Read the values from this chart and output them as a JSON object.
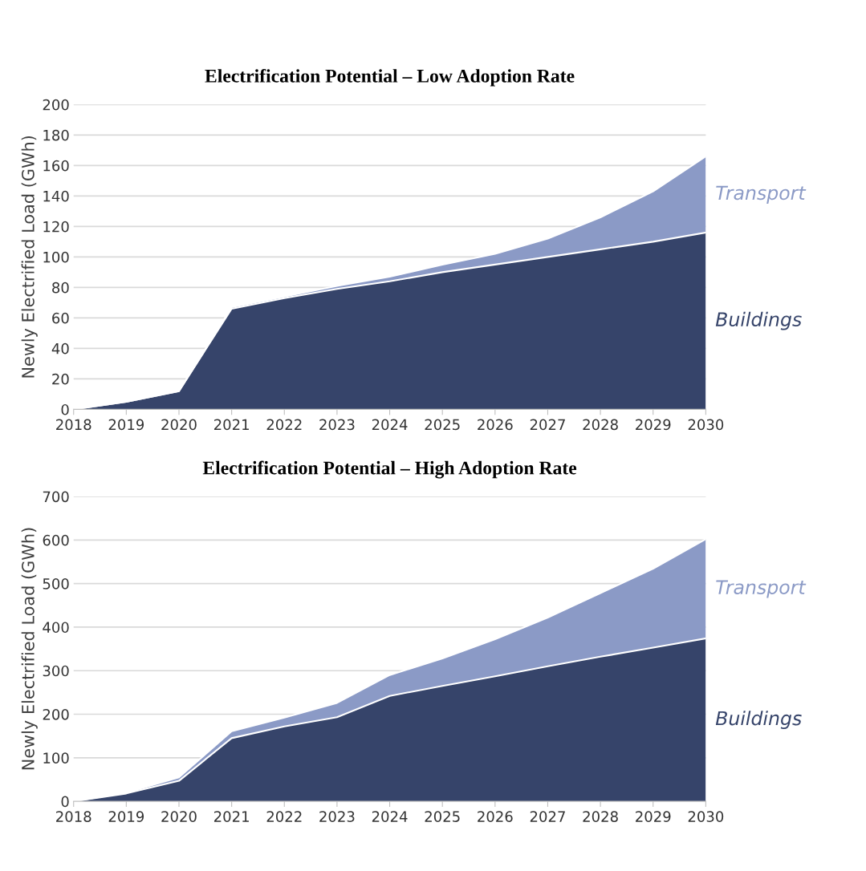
{
  "chart_data": [
    {
      "type": "area",
      "title": "Electrification Potential – Low Adoption Rate",
      "ylabel": "Newly Electrified Load (GWh)",
      "stacked": true,
      "grid": "y",
      "legend": false,
      "x": [
        2018,
        2019,
        2020,
        2021,
        2022,
        2023,
        2024,
        2025,
        2026,
        2027,
        2028,
        2029,
        2030
      ],
      "series": [
        {
          "name": "Buildings",
          "color": "#36446a",
          "values": [
            0,
            5,
            12,
            66,
            73,
            79,
            84,
            90,
            95,
            100,
            105,
            110,
            116
          ]
        },
        {
          "name": "Transport",
          "color": "#8b9ac6",
          "values": [
            0,
            0,
            0,
            1,
            1,
            2,
            3,
            5,
            7,
            12,
            21,
            33,
            50
          ]
        }
      ],
      "xlim": [
        2018,
        2030
      ],
      "xticks": [
        2018,
        2019,
        2020,
        2021,
        2022,
        2023,
        2024,
        2025,
        2026,
        2027,
        2028,
        2029,
        2030
      ],
      "ylim": [
        0,
        200
      ],
      "yticks": [
        0,
        20,
        40,
        60,
        80,
        100,
        120,
        140,
        160,
        180,
        200
      ]
    },
    {
      "type": "area",
      "title": "Electrification Potential – High Adoption Rate",
      "ylabel": "Newly Electrified Load (GWh)",
      "stacked": true,
      "grid": "y",
      "legend": false,
      "x": [
        2018,
        2019,
        2020,
        2021,
        2022,
        2023,
        2024,
        2025,
        2026,
        2027,
        2028,
        2029,
        2030
      ],
      "series": [
        {
          "name": "Buildings",
          "color": "#36446a",
          "values": [
            0,
            18,
            47,
            145,
            172,
            193,
            242,
            265,
            287,
            310,
            332,
            353,
            374
          ]
        },
        {
          "name": "Transport",
          "color": "#8b9ac6",
          "values": [
            0,
            2,
            8,
            16,
            20,
            33,
            48,
            63,
            85,
            112,
            146,
            181,
            228
          ]
        }
      ],
      "xlim": [
        2018,
        2030
      ],
      "xticks": [
        2018,
        2019,
        2020,
        2021,
        2022,
        2023,
        2024,
        2025,
        2026,
        2027,
        2028,
        2029,
        2030
      ],
      "ylim": [
        0,
        700
      ],
      "yticks": [
        0,
        100,
        200,
        300,
        400,
        500,
        600,
        700
      ]
    }
  ]
}
